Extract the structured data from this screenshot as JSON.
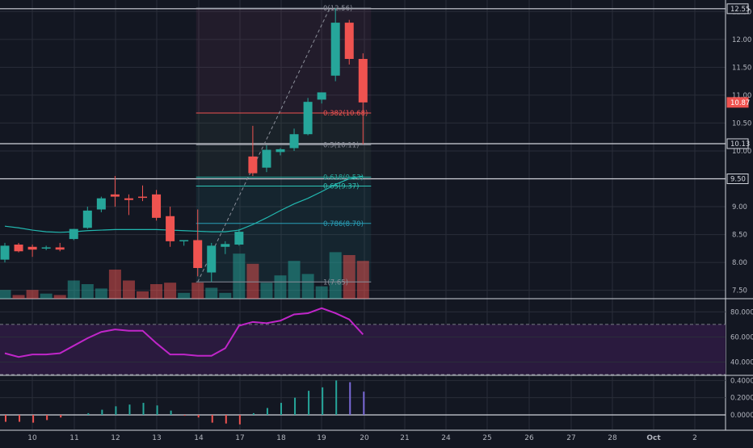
{
  "theme": {
    "background": "#131722",
    "grid": "#2a2e39",
    "up": "#26a69a",
    "down": "#ef5350",
    "ma_line": "#22b8b0",
    "rsi_line": "#c026c9",
    "rsi_band": "#2a1a3e",
    "axis_text": "#b2b5be",
    "fib_text_red": "#ef5350",
    "fib_text_green": "#26a69a"
  },
  "chart_data": [
    {
      "type": "candlestick",
      "ylim": [
        7.35,
        12.62
      ],
      "y_ticks": [
        "7.50",
        "8.00",
        "8.50",
        "9.00",
        "9.50",
        "10.00",
        "10.50",
        "11.00",
        "11.50",
        "12.00",
        "12.50"
      ],
      "y_tick_values": [
        7.5,
        8.0,
        8.5,
        9.0,
        9.5,
        10.0,
        10.5,
        11.0,
        11.5,
        12.0,
        12.5
      ],
      "price_labels": [
        {
          "text": "12.55",
          "value": 12.55,
          "style": "outline"
        },
        {
          "text": "10.87",
          "value": 10.87,
          "style": "red"
        },
        {
          "text": "10.13",
          "value": 10.13,
          "style": "outline"
        },
        {
          "text": "9.50",
          "value": 9.5,
          "style": "outline"
        }
      ],
      "horizontal_lines": [
        12.55,
        10.13,
        9.5
      ],
      "candles": [
        {
          "o": 8.05,
          "h": 8.35,
          "l": 8.0,
          "c": 8.3
        },
        {
          "o": 8.32,
          "h": 8.35,
          "l": 8.18,
          "c": 8.2
        },
        {
          "o": 8.28,
          "h": 8.32,
          "l": 8.1,
          "c": 8.23
        },
        {
          "o": 8.25,
          "h": 8.3,
          "l": 8.22,
          "c": 8.27
        },
        {
          "o": 8.27,
          "h": 8.35,
          "l": 8.2,
          "c": 8.23
        },
        {
          "o": 8.42,
          "h": 8.6,
          "l": 8.4,
          "c": 8.6
        },
        {
          "o": 8.62,
          "h": 9.0,
          "l": 8.6,
          "c": 8.93
        },
        {
          "o": 8.95,
          "h": 9.18,
          "l": 8.9,
          "c": 9.15
        },
        {
          "o": 9.22,
          "h": 9.55,
          "l": 9.0,
          "c": 9.18
        },
        {
          "o": 9.15,
          "h": 9.22,
          "l": 8.85,
          "c": 9.12
        },
        {
          "o": 9.18,
          "h": 9.38,
          "l": 9.1,
          "c": 9.16
        },
        {
          "o": 9.22,
          "h": 9.3,
          "l": 8.75,
          "c": 8.8
        },
        {
          "o": 8.83,
          "h": 9.0,
          "l": 8.28,
          "c": 8.38
        },
        {
          "o": 8.4,
          "h": 8.4,
          "l": 8.3,
          "c": 8.4
        },
        {
          "o": 8.4,
          "h": 8.95,
          "l": 7.75,
          "c": 7.9
        },
        {
          "o": 7.82,
          "h": 8.35,
          "l": 7.65,
          "c": 8.3
        },
        {
          "o": 8.28,
          "h": 8.38,
          "l": 8.15,
          "c": 8.33
        },
        {
          "o": 8.32,
          "h": 8.6,
          "l": 8.3,
          "c": 8.55
        },
        {
          "o": 9.9,
          "h": 10.45,
          "l": 9.55,
          "c": 9.6
        },
        {
          "o": 9.7,
          "h": 10.1,
          "l": 9.62,
          "c": 10.02
        },
        {
          "o": 9.98,
          "h": 10.05,
          "l": 9.92,
          "c": 10.03
        },
        {
          "o": 10.05,
          "h": 10.4,
          "l": 10.0,
          "c": 10.3
        },
        {
          "o": 10.3,
          "h": 10.95,
          "l": 10.28,
          "c": 10.88
        },
        {
          "o": 10.92,
          "h": 11.05,
          "l": 10.85,
          "c": 11.05
        },
        {
          "o": 11.35,
          "h": 12.56,
          "l": 11.25,
          "c": 12.3
        },
        {
          "o": 12.3,
          "h": 12.35,
          "l": 11.55,
          "c": 11.65
        },
        {
          "o": 11.65,
          "h": 11.75,
          "l": 10.12,
          "c": 10.87
        }
      ],
      "ma": [
        8.65,
        8.62,
        8.58,
        8.55,
        8.54,
        8.55,
        8.57,
        8.58,
        8.59,
        8.59,
        8.59,
        8.59,
        8.58,
        8.57,
        8.56,
        8.55,
        8.55,
        8.58,
        8.68,
        8.8,
        8.93,
        9.05,
        9.15,
        9.27,
        9.4,
        9.5,
        9.55
      ],
      "volume": [
        0.12,
        0.05,
        0.12,
        0.07,
        0.05,
        0.25,
        0.2,
        0.14,
        0.4,
        0.25,
        0.1,
        0.2,
        0.22,
        0.08,
        0.22,
        0.15,
        0.08,
        0.62,
        0.48,
        0.22,
        0.32,
        0.52,
        0.34,
        0.17,
        0.64,
        0.6,
        0.52
      ],
      "fibonacci": [
        {
          "label": "0(12.56)",
          "value": 12.56,
          "color": "#8a8e99"
        },
        {
          "label": "0.382(10.68)",
          "value": 10.68,
          "color": "#ef5350"
        },
        {
          "label": "0.5(10.11)",
          "value": 10.11,
          "color": "#8a8e99"
        },
        {
          "label": "0.618(9.53)",
          "value": 9.53,
          "color": "#26a69a"
        },
        {
          "label": "0.65(9.37)",
          "value": 9.37,
          "color": "#2ec4b6"
        },
        {
          "label": "0.786(8.70)",
          "value": 8.7,
          "color": "#2aa0b8"
        },
        {
          "label": "1(7.65)",
          "value": 7.65,
          "color": "#8a8e99"
        }
      ]
    },
    {
      "type": "line",
      "name": "rsi",
      "ylim": [
        30,
        88
      ],
      "y_ticks": [
        "80.0000",
        "60.0000",
        "40.0000"
      ],
      "y_tick_values": [
        80,
        60,
        40
      ],
      "band": [
        30,
        70
      ],
      "values": [
        47,
        44,
        46,
        46,
        47,
        53,
        59,
        64,
        66,
        65,
        65,
        55,
        46,
        46,
        45,
        45,
        51,
        69,
        72,
        71,
        73,
        78,
        79,
        83,
        79,
        74,
        62
      ]
    },
    {
      "type": "bar",
      "name": "histogram",
      "ylim": [
        -0.15,
        0.45
      ],
      "y_ticks": [
        "0.4000",
        "0.2000",
        "0.0000"
      ],
      "y_tick_values": [
        0.4,
        0.2,
        0.0
      ],
      "values": [
        -0.08,
        -0.08,
        -0.09,
        -0.06,
        -0.03,
        0.0,
        0.02,
        0.06,
        0.1,
        0.12,
        0.14,
        0.11,
        0.05,
        -0.01,
        -0.03,
        -0.09,
        -0.1,
        -0.11,
        0.02,
        0.08,
        0.14,
        0.2,
        0.28,
        0.32,
        0.4,
        0.38,
        0.27
      ]
    }
  ],
  "x_axis": {
    "labels": [
      "10",
      "11",
      "12",
      "13",
      "14",
      "17",
      "18",
      "19",
      "20",
      "21",
      "24",
      "25",
      "26",
      "27",
      "28",
      "Oct",
      "2"
    ],
    "label_bold": [
      false,
      false,
      false,
      false,
      false,
      false,
      false,
      false,
      false,
      false,
      false,
      false,
      false,
      false,
      false,
      true,
      false
    ]
  }
}
